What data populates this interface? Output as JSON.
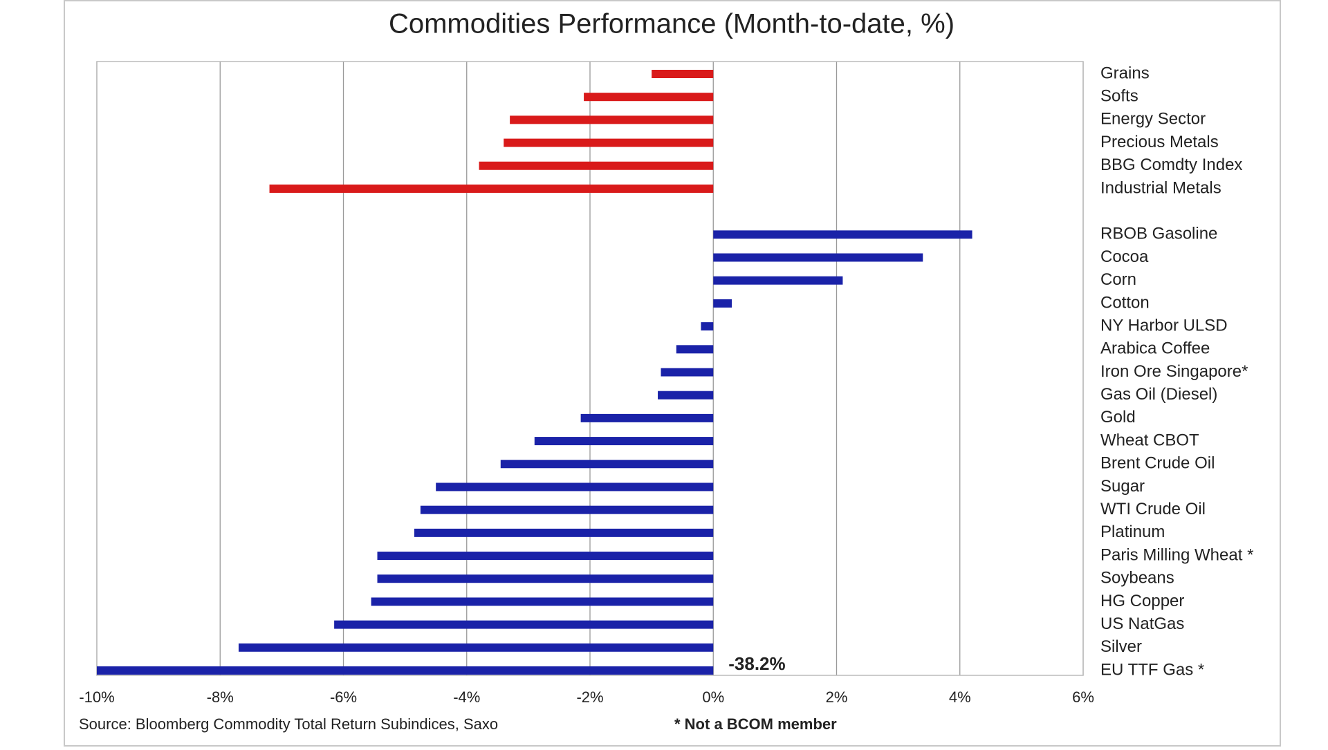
{
  "chart_data": {
    "type": "barh",
    "title": "Commodities Performance (Month-to-date, %)",
    "categories": [
      "Grains",
      "Softs",
      "Energy Sector",
      "Precious Metals",
      "BBG Comdty Index",
      "Industrial Metals",
      null,
      "RBOB Gasoline",
      "Cocoa",
      "Corn",
      "Cotton",
      "NY Harbor ULSD",
      "Arabica Coffee",
      "Iron Ore Singapore*",
      "Gas Oil (Diesel)",
      "Gold",
      "Wheat CBOT",
      "Brent Crude Oil",
      "Sugar",
      "WTI Crude Oil",
      "Platinum",
      "Paris Milling Wheat *",
      "Soybeans",
      "HG Copper",
      "US NatGas",
      "Silver",
      "EU TTF Gas *"
    ],
    "values": [
      -1.0,
      -2.1,
      -3.3,
      -3.4,
      -3.8,
      -7.2,
      null,
      4.2,
      3.4,
      2.1,
      0.3,
      -0.2,
      -0.6,
      -0.85,
      -0.9,
      -2.15,
      -2.9,
      -3.45,
      -4.5,
      -4.75,
      -4.85,
      -5.45,
      -5.45,
      -5.55,
      -6.15,
      -7.7,
      -38.2
    ],
    "value_labels": [
      null,
      null,
      null,
      null,
      null,
      null,
      null,
      null,
      null,
      null,
      null,
      null,
      null,
      null,
      null,
      null,
      null,
      null,
      null,
      null,
      null,
      null,
      null,
      null,
      null,
      null,
      "-38.2%"
    ],
    "bar_colors": [
      "#d91a1a",
      "#d91a1a",
      "#d91a1a",
      "#d91a1a",
      "#d91a1a",
      "#d91a1a",
      null,
      "#1a22a8",
      "#1a22a8",
      "#1a22a8",
      "#1a22a8",
      "#1a22a8",
      "#1a22a8",
      "#1a22a8",
      "#1a22a8",
      "#1a22a8",
      "#1a22a8",
      "#1a22a8",
      "#1a22a8",
      "#1a22a8",
      "#1a22a8",
      "#1a22a8",
      "#1a22a8",
      "#1a22a8",
      "#1a22a8",
      "#1a22a8",
      "#1a22a8"
    ],
    "value_label_color": "#e8202a",
    "xlim": [
      -10,
      6
    ],
    "xticks": [
      {
        "value": -10,
        "label": "-10%"
      },
      {
        "value": -8,
        "label": "-8%"
      },
      {
        "value": -6,
        "label": "-6%"
      },
      {
        "value": -4,
        "label": "-4%"
      },
      {
        "value": -2,
        "label": "-2%"
      },
      {
        "value": 0,
        "label": "0%"
      },
      {
        "value": 2,
        "label": "2%"
      },
      {
        "value": 4,
        "label": "4%"
      },
      {
        "value": 6,
        "label": "6%"
      }
    ],
    "grid": true,
    "source": "Source: Bloomberg Commodity Total Return Subindices, Saxo",
    "note": "* Not a BCOM member"
  }
}
